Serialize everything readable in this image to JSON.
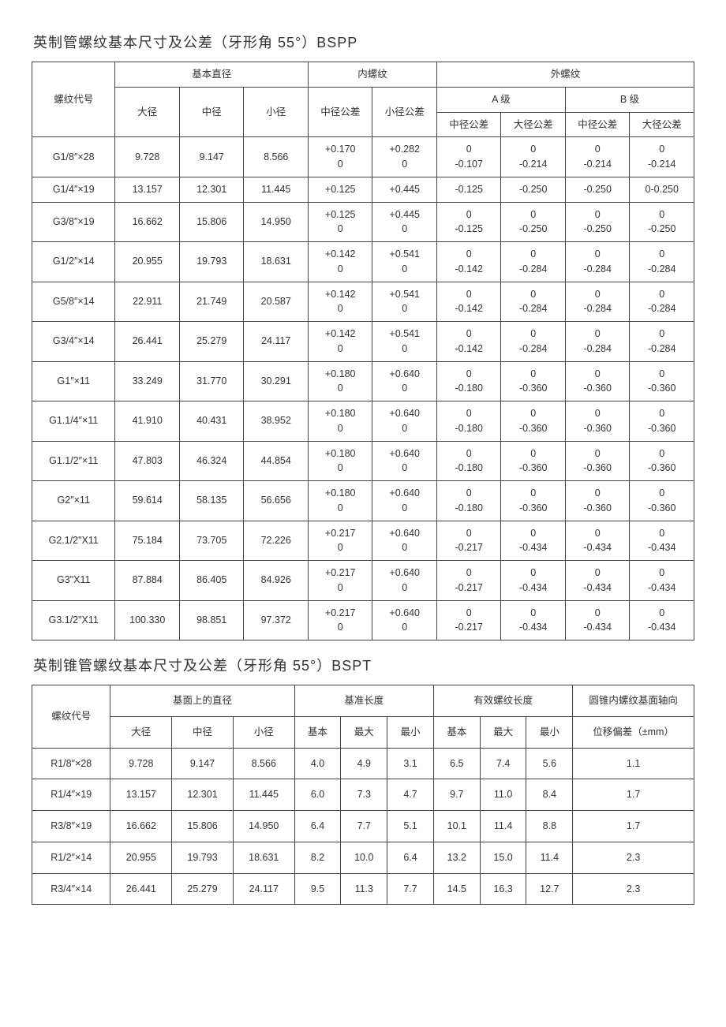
{
  "bspp": {
    "title": "英制管螺纹基本尺寸及公差（牙形角 55°）BSPP",
    "headers": {
      "code": "螺纹代号",
      "basic_dia": "基本直径",
      "major": "大径",
      "pitch": "中径",
      "minor": "小径",
      "internal": "内螺纹",
      "int_pitch_tol": "中径公差",
      "int_minor_tol": "小径公差",
      "external": "外螺纹",
      "grade_a": "A 级",
      "grade_b": "B 级",
      "ext_pitch_tol": "中径公差",
      "ext_major_tol": "大径公差"
    },
    "rows": [
      {
        "code": "G1/8″×28",
        "maj": "9.728",
        "pit": "9.147",
        "min": "8.566",
        "ip": "+0.170\n0",
        "im": "+0.282\n0",
        "ap": "0\n-0.107",
        "am": "0\n-0.214",
        "bp": "0\n-0.214",
        "bm": "0\n-0.214"
      },
      {
        "code": "G1/4″×19",
        "maj": "13.157",
        "pit": "12.301",
        "min": "11.445",
        "ip": "+0.125",
        "im": "+0.445",
        "ap": "-0.125",
        "am": "-0.250",
        "bp": "-0.250",
        "bm": "0-0.250"
      },
      {
        "code": "G3/8″×19",
        "maj": "16.662",
        "pit": "15.806",
        "min": "14.950",
        "ip": "+0.125\n0",
        "im": "+0.445\n0",
        "ap": "0\n-0.125",
        "am": "0\n-0.250",
        "bp": "0\n-0.250",
        "bm": "0\n-0.250"
      },
      {
        "code": "G1/2″×14",
        "maj": "20.955",
        "pit": "19.793",
        "min": "18.631",
        "ip": "+0.142\n0",
        "im": "+0.541\n0",
        "ap": "0\n-0.142",
        "am": "0\n-0.284",
        "bp": "0\n-0.284",
        "bm": "0\n-0.284"
      },
      {
        "code": "G5/8″×14",
        "maj": "22.911",
        "pit": "21.749",
        "min": "20.587",
        "ip": "+0.142\n0",
        "im": "+0.541\n0",
        "ap": "0\n-0.142",
        "am": "0\n-0.284",
        "bp": "0\n-0.284",
        "bm": "0\n-0.284"
      },
      {
        "code": "G3/4″×14",
        "maj": "26.441",
        "pit": "25.279",
        "min": "24.117",
        "ip": "+0.142\n0",
        "im": "+0.541\n0",
        "ap": "0\n-0.142",
        "am": "0\n-0.284",
        "bp": "0\n-0.284",
        "bm": "0\n-0.284"
      },
      {
        "code": "G1″×11",
        "maj": "33.249",
        "pit": "31.770",
        "min": "30.291",
        "ip": "+0.180\n0",
        "im": "+0.640\n0",
        "ap": "0\n-0.180",
        "am": "0\n-0.360",
        "bp": "0\n-0.360",
        "bm": "0\n-0.360"
      },
      {
        "code": "G1.1/4″×11",
        "maj": "41.910",
        "pit": "40.431",
        "min": "38.952",
        "ip": "+0.180\n0",
        "im": "+0.640\n0",
        "ap": "0\n-0.180",
        "am": "0\n-0.360",
        "bp": "0\n-0.360",
        "bm": "0\n-0.360"
      },
      {
        "code": "G1.1/2″×11",
        "maj": "47.803",
        "pit": "46.324",
        "min": "44.854",
        "ip": "+0.180\n0",
        "im": "+0.640\n0",
        "ap": "0\n-0.180",
        "am": "0\n-0.360",
        "bp": "0\n-0.360",
        "bm": "0\n-0.360"
      },
      {
        "code": "G2″×11",
        "maj": "59.614",
        "pit": "58.135",
        "min": "56.656",
        "ip": "+0.180\n0",
        "im": "+0.640\n0",
        "ap": "0\n-0.180",
        "am": "0\n-0.360",
        "bp": "0\n-0.360",
        "bm": "0\n-0.360"
      },
      {
        "code": "G2.1/2\"X11",
        "maj": "75.184",
        "pit": "73.705",
        "min": "72.226",
        "ip": "+0.217\n0",
        "im": "+0.640\n0",
        "ap": "0\n-0.217",
        "am": "0\n-0.434",
        "bp": "0\n-0.434",
        "bm": "0\n-0.434"
      },
      {
        "code": "G3\"X11",
        "maj": "87.884",
        "pit": "86.405",
        "min": "84.926",
        "ip": "+0.217\n0",
        "im": "+0.640\n0",
        "ap": "0\n-0.217",
        "am": "0\n-0.434",
        "bp": "0\n-0.434",
        "bm": "0\n-0.434"
      },
      {
        "code": "G3.1/2\"X11",
        "maj": "100.330",
        "pit": "98.851",
        "min": "97.372",
        "ip": "+0.217\n0",
        "im": "+0.640\n0",
        "ap": "0\n-0.217",
        "am": "0\n-0.434",
        "bp": "0\n-0.434",
        "bm": "0\n-0.434"
      }
    ]
  },
  "bspt": {
    "title": "英制锥管螺纹基本尺寸及公差（牙形角 55°）BSPT",
    "headers": {
      "code": "螺纹代号",
      "base_dia": "基面上的直径",
      "major": "大径",
      "pitch": "中径",
      "minor": "小径",
      "ref_len": "基准长度",
      "eff_len": "有效螺纹长度",
      "basic": "基本",
      "max": "最大",
      "min": "最小",
      "axial": "圆锥内螺纹基面轴向",
      "dev": "位移偏差（±mm）"
    },
    "rows": [
      {
        "code": "R1/8″×28",
        "maj": "9.728",
        "pit": "9.147",
        "min": "8.566",
        "rb": "4.0",
        "rx": "4.9",
        "rn": "3.1",
        "eb": "6.5",
        "ex": "7.4",
        "en": "5.6",
        "dev": "1.1"
      },
      {
        "code": "R1/4″×19",
        "maj": "13.157",
        "pit": "12.301",
        "min": "11.445",
        "rb": "6.0",
        "rx": "7.3",
        "rn": "4.7",
        "eb": "9.7",
        "ex": "11.0",
        "en": "8.4",
        "dev": "1.7"
      },
      {
        "code": "R3/8″×19",
        "maj": "16.662",
        "pit": "15.806",
        "min": "14.950",
        "rb": "6.4",
        "rx": "7.7",
        "rn": "5.1",
        "eb": "10.1",
        "ex": "11.4",
        "en": "8.8",
        "dev": "1.7"
      },
      {
        "code": "R1/2″×14",
        "maj": "20.955",
        "pit": "19.793",
        "min": "18.631",
        "rb": "8.2",
        "rx": "10.0",
        "rn": "6.4",
        "eb": "13.2",
        "ex": "15.0",
        "en": "11.4",
        "dev": "2.3"
      },
      {
        "code": "R3/4″×14",
        "maj": "26.441",
        "pit": "25.279",
        "min": "24.117",
        "rb": "9.5",
        "rx": "11.3",
        "rn": "7.7",
        "eb": "14.5",
        "ex": "16.3",
        "en": "12.7",
        "dev": "2.3"
      }
    ]
  },
  "style": {
    "border_color": "#444444",
    "background_color": "#ffffff",
    "text_color": "#333333",
    "title_fontsize": 18,
    "cell_fontsize": 12.5,
    "font_family": "Microsoft YaHei"
  }
}
